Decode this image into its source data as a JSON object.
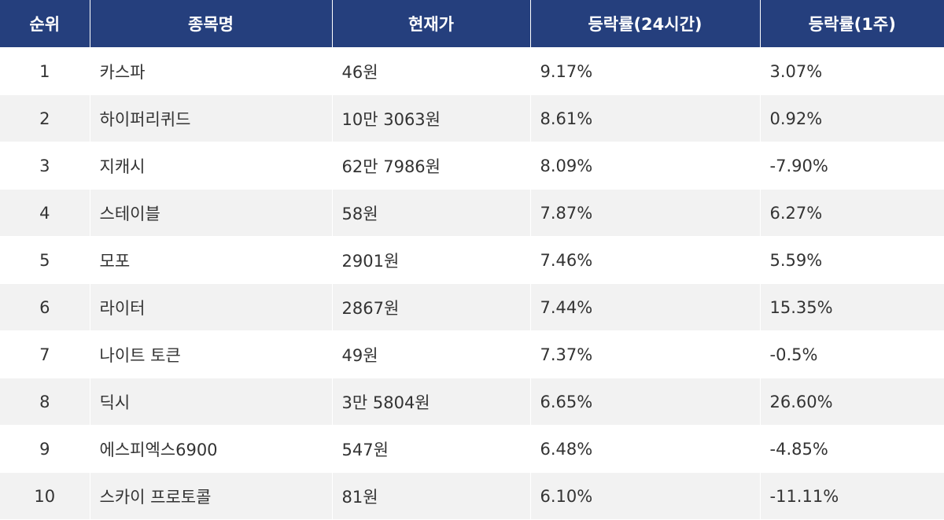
{
  "table": {
    "headers": [
      "순위",
      "종목명",
      "현재가",
      "등락률(24시간)",
      "등락률(1주)"
    ],
    "rows": [
      [
        "1",
        "카스파",
        "46원",
        "9.17%",
        "3.07%"
      ],
      [
        "2",
        "하이퍼리퀴드",
        "10만 3063원",
        "8.61%",
        "0.92%"
      ],
      [
        "3",
        "지캐시",
        "62만 7986원",
        "8.09%",
        "-7.90%"
      ],
      [
        "4",
        "스테이블",
        "58원",
        "7.87%",
        "6.27%"
      ],
      [
        "5",
        "모포",
        "2901원",
        "7.46%",
        "5.59%"
      ],
      [
        "6",
        "라이터",
        "2867원",
        "7.44%",
        "15.35%"
      ],
      [
        "7",
        "나이트 토큰",
        "49원",
        "7.37%",
        "-0.5%"
      ],
      [
        "8",
        "딕시",
        "3만 5804원",
        "6.65%",
        "26.60%"
      ],
      [
        "9",
        "에스피엑스6900",
        "547원",
        "6.48%",
        "-4.85%"
      ],
      [
        "10",
        "스카이 프로토콜",
        "81원",
        "6.10%",
        "-11.11%"
      ]
    ]
  },
  "colors": {
    "header_bg": "#253f7d",
    "header_text": "#ffffff",
    "row_alt_bg": "#f2f2f2",
    "body_text": "#333333"
  }
}
